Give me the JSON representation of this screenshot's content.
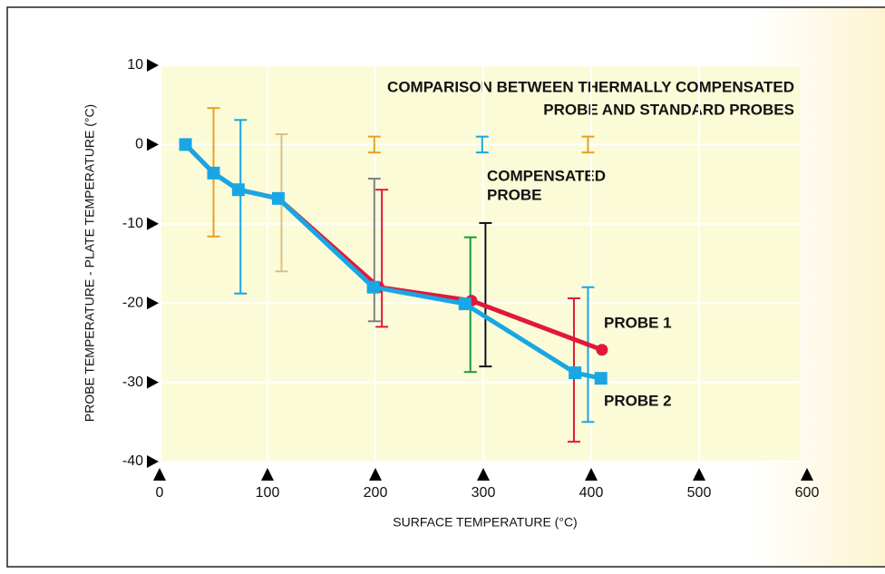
{
  "chart_data": {
    "type": "line",
    "title_lines": [
      "COMPARISON BETWEEN THERMALLY COMPENSATED",
      "PROBE AND STANDARD PROBES"
    ],
    "x_label": "SURFACE TEMPERATURE (°C)",
    "y_label": "PROBE TEMPERATURE - PLATE TEMPERATURE (°C)",
    "xlim": [
      0,
      600
    ],
    "xticks": [
      0,
      100,
      200,
      300,
      400,
      500,
      600
    ],
    "ylim": [
      -40,
      10
    ],
    "yticks": [
      -40,
      -30,
      -20,
      -10,
      0,
      10
    ],
    "grid": true,
    "series": [
      {
        "name": "PROBE 1",
        "color": "#e0183c",
        "marker": "circle",
        "x": [
          24,
          50,
          73,
          110,
          203,
          289,
          410
        ],
        "values": [
          0,
          -3.6,
          -5.7,
          -6.8,
          -18,
          -19.7,
          -25.9
        ]
      },
      {
        "name": "PROBE 2",
        "color": "#19a6e4",
        "marker": "square",
        "x": [
          24,
          50,
          73,
          110,
          198,
          283,
          385,
          409
        ],
        "values": [
          0,
          -3.6,
          -5.7,
          -6.8,
          -18,
          -20.1,
          -28.8,
          -29.5
        ]
      }
    ],
    "error_bars": [
      {
        "x": 50,
        "low": -11.6,
        "high": 4.6,
        "color": "#e8a020"
      },
      {
        "x": 75,
        "low": -18.8,
        "high": 3.1,
        "color": "#19a6e4"
      },
      {
        "x": 113,
        "low": -16,
        "high": 1.3,
        "color": "#d8c08a"
      },
      {
        "x": 199,
        "low": -22.3,
        "high": -4.3,
        "color": "#808080"
      },
      {
        "x": 206,
        "low": -23,
        "high": -5.7,
        "color": "#e0183c"
      },
      {
        "x": 288,
        "low": -28.7,
        "high": -11.7,
        "color": "#1a9a3a"
      },
      {
        "x": 302,
        "low": -28,
        "high": -9.9,
        "color": "#111111"
      },
      {
        "x": 384,
        "low": -37.5,
        "high": -19.4,
        "color": "#e0183c"
      },
      {
        "x": 397,
        "low": -35,
        "high": -18,
        "color": "#19a6e4"
      },
      {
        "x": 199,
        "low": -1,
        "high": 1,
        "color": "#e8a020"
      },
      {
        "x": 299,
        "low": -1,
        "high": 1,
        "color": "#19a6e4"
      },
      {
        "x": 397,
        "low": -1,
        "high": 1,
        "color": "#e8a020"
      }
    ],
    "annotations": [
      "COMPENSATED",
      "PROBE"
    ]
  }
}
